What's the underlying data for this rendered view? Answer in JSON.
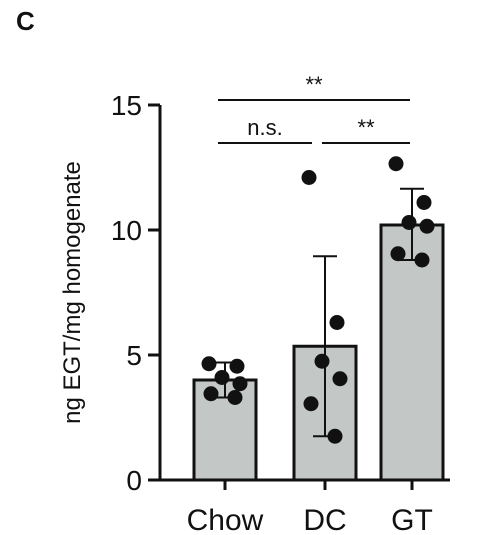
{
  "panel_label": "C",
  "chart_data": {
    "type": "bar",
    "title": "",
    "xlabel": "",
    "ylabel": "ng EGT/mg homogenate",
    "ylim": [
      0,
      15
    ],
    "yticks": [
      0,
      5,
      10,
      15
    ],
    "categories": [
      "Chow",
      "DC",
      "GT"
    ],
    "values": [
      4.0,
      5.35,
      10.2
    ],
    "error_bars": [
      {
        "low": 3.3,
        "high": 4.7
      },
      {
        "low": 1.75,
        "high": 8.95
      },
      {
        "low": 8.8,
        "high": 11.65
      }
    ],
    "points": [
      [
        4.65,
        4.55,
        4.1,
        3.85,
        3.45,
        3.3
      ],
      [
        12.1,
        6.3,
        4.75,
        4.05,
        3.05,
        1.75
      ],
      [
        12.65,
        11.1,
        10.3,
        10.15,
        9.05,
        8.8
      ]
    ],
    "bar_color": "#c3c8c6",
    "significance": [
      {
        "from": "Chow",
        "to": "GT",
        "label": "**"
      },
      {
        "from": "Chow",
        "to": "DC",
        "label": "n.s."
      },
      {
        "from": "DC",
        "to": "GT",
        "label": "**"
      }
    ]
  }
}
